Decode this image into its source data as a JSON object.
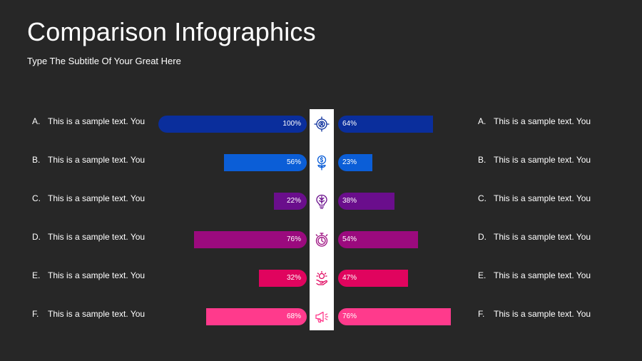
{
  "header": {
    "title": "Comparison Infographics",
    "subtitle": "Type The Subtitle Of Your Great Here"
  },
  "chart_data": {
    "type": "bar",
    "title": "Comparison Infographics",
    "subtitle": "Type The Subtitle Of Your Great Here",
    "max": 100,
    "rows": [
      {
        "letter": "A.",
        "left_label": "This is a sample text. You",
        "right_label": "This is a sample text. You",
        "left_value": 100,
        "right_value": 64,
        "color": "#0A2E9C",
        "icon": "target-user-icon"
      },
      {
        "letter": "B.",
        "left_label": "This is a sample text. You",
        "right_label": "This is a sample text. You",
        "left_value": 56,
        "right_value": 23,
        "color": "#0B5ED7",
        "icon": "money-plant-icon"
      },
      {
        "letter": "C.",
        "left_label": "This is a sample text. You",
        "right_label": "This is a sample text. You",
        "left_value": 22,
        "right_value": 38,
        "color": "#6A0E8C",
        "icon": "brain-bulb-icon"
      },
      {
        "letter": "D.",
        "left_label": "This is a sample text. You",
        "right_label": "This is a sample text. You",
        "left_value": 76,
        "right_value": 54,
        "color": "#9B0A7E",
        "icon": "stopwatch-icon"
      },
      {
        "letter": "E.",
        "left_label": "This is a sample text. You",
        "right_label": "This is a sample text. You",
        "left_value": 32,
        "right_value": 47,
        "color": "#E0045E",
        "icon": "idea-hand-icon"
      },
      {
        "letter": "F.",
        "left_label": "This is a sample text. You",
        "right_label": "This is a sample text. You",
        "left_value": 68,
        "right_value": 76,
        "color": "#FF3A8C",
        "icon": "megaphone-icon"
      }
    ]
  }
}
